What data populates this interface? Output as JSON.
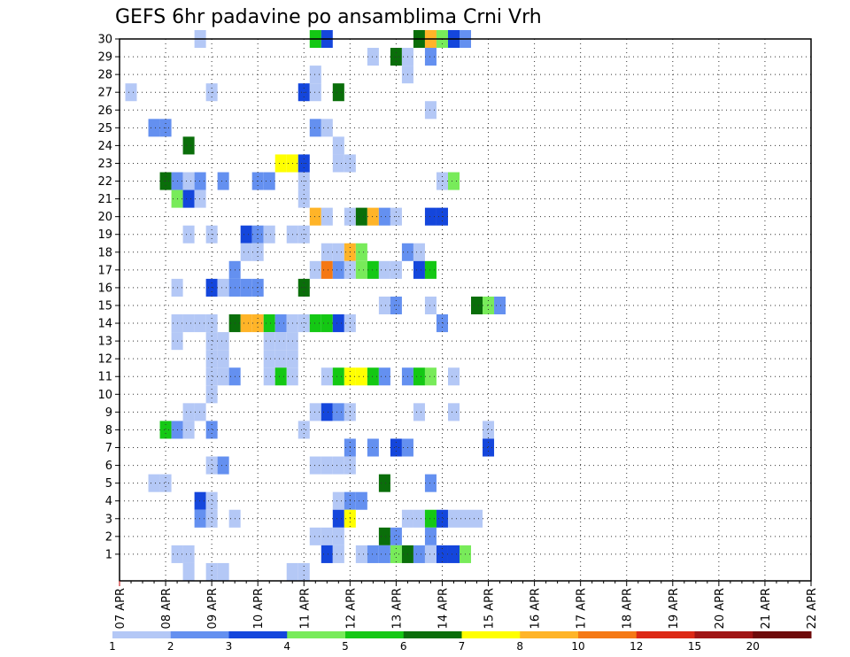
{
  "chart_data": {
    "type": "heatmap",
    "title": "GEFS 6hr padavine po ansamblima Crni Vrh",
    "xlabel": "",
    "ylabel": "",
    "grid": true,
    "x_range": [
      "07 APR 00Z",
      "22 APR 00Z"
    ],
    "x_step": "6 hours",
    "x_tick_labels": [
      "07 APR",
      "08 APR",
      "09 APR",
      "10 APR",
      "11 APR",
      "12 APR",
      "13 APR",
      "14 APR",
      "15 APR",
      "16 APR",
      "17 APR",
      "18 APR",
      "19 APR",
      "20 APR",
      "21 APR",
      "22 APR"
    ],
    "y_tick_labels": [
      "1",
      "2",
      "3",
      "4",
      "5",
      "6",
      "7",
      "8",
      "9",
      "10",
      "11",
      "12",
      "13",
      "14",
      "15",
      "16",
      "17",
      "18",
      "19",
      "20",
      "21",
      "22",
      "23",
      "24",
      "25",
      "26",
      "27",
      "28",
      "29",
      "30"
    ],
    "y_range": [
      1,
      30
    ],
    "colorbar": {
      "labels": [
        "1",
        "2",
        "3",
        "4",
        "5",
        "6",
        "7",
        "8",
        "10",
        "12",
        "15",
        "20"
      ],
      "colors": [
        "#b4c8f6",
        "#6490f0",
        "#1446dc",
        "#78eb5a",
        "#14c814",
        "#0a6e0a",
        "#ffff00",
        "#ffb428",
        "#f57814",
        "#dc2814",
        "#a01414",
        "#6e0a0a"
      ]
    },
    "cells_note": "[member, time step index from 07 APR 00Z in 6h steps, colour class index 0-11]",
    "cells": [
      [
        30,
        7,
        0
      ],
      [
        30,
        17,
        4
      ],
      [
        30,
        18,
        2
      ],
      [
        30,
        26,
        5
      ],
      [
        30,
        27,
        7
      ],
      [
        30,
        28,
        3
      ],
      [
        30,
        29,
        2
      ],
      [
        30,
        30,
        1
      ],
      [
        29,
        22,
        0
      ],
      [
        29,
        24,
        5
      ],
      [
        29,
        25,
        0
      ],
      [
        29,
        27,
        1
      ],
      [
        28,
        17,
        0
      ],
      [
        28,
        25,
        0
      ],
      [
        27,
        1,
        0
      ],
      [
        27,
        8,
        0
      ],
      [
        27,
        16,
        2
      ],
      [
        27,
        17,
        0
      ],
      [
        27,
        19,
        5
      ],
      [
        26,
        27,
        0
      ],
      [
        25,
        3,
        1
      ],
      [
        25,
        4,
        1
      ],
      [
        25,
        17,
        1
      ],
      [
        25,
        18,
        0
      ],
      [
        24,
        6,
        5
      ],
      [
        24,
        19,
        0
      ],
      [
        23,
        14,
        6
      ],
      [
        23,
        15,
        6
      ],
      [
        23,
        16,
        2
      ],
      [
        23,
        19,
        0
      ],
      [
        23,
        20,
        0
      ],
      [
        22,
        4,
        5
      ],
      [
        22,
        5,
        1
      ],
      [
        22,
        6,
        0
      ],
      [
        22,
        7,
        1
      ],
      [
        22,
        9,
        1
      ],
      [
        22,
        12,
        1
      ],
      [
        22,
        13,
        1
      ],
      [
        22,
        16,
        0
      ],
      [
        22,
        28,
        0
      ],
      [
        22,
        29,
        3
      ],
      [
        21,
        5,
        3
      ],
      [
        21,
        6,
        2
      ],
      [
        21,
        7,
        0
      ],
      [
        21,
        16,
        0
      ],
      [
        20,
        17,
        7
      ],
      [
        20,
        18,
        0
      ],
      [
        20,
        20,
        0
      ],
      [
        20,
        21,
        5
      ],
      [
        20,
        22,
        7
      ],
      [
        20,
        23,
        1
      ],
      [
        20,
        24,
        0
      ],
      [
        20,
        27,
        2
      ],
      [
        20,
        28,
        2
      ],
      [
        19,
        6,
        0
      ],
      [
        19,
        8,
        0
      ],
      [
        19,
        11,
        2
      ],
      [
        19,
        12,
        1
      ],
      [
        19,
        13,
        0
      ],
      [
        19,
        15,
        0
      ],
      [
        19,
        16,
        0
      ],
      [
        18,
        11,
        0
      ],
      [
        18,
        12,
        0
      ],
      [
        18,
        18,
        0
      ],
      [
        18,
        19,
        0
      ],
      [
        18,
        20,
        7
      ],
      [
        18,
        21,
        3
      ],
      [
        18,
        25,
        1
      ],
      [
        18,
        26,
        0
      ],
      [
        17,
        10,
        1
      ],
      [
        17,
        17,
        0
      ],
      [
        17,
        18,
        8
      ],
      [
        17,
        19,
        1
      ],
      [
        17,
        20,
        0
      ],
      [
        17,
        21,
        3
      ],
      [
        17,
        22,
        4
      ],
      [
        17,
        23,
        0
      ],
      [
        17,
        24,
        0
      ],
      [
        17,
        26,
        2
      ],
      [
        17,
        27,
        4
      ],
      [
        16,
        5,
        0
      ],
      [
        16,
        8,
        2
      ],
      [
        16,
        9,
        0
      ],
      [
        16,
        10,
        1
      ],
      [
        16,
        11,
        1
      ],
      [
        16,
        12,
        1
      ],
      [
        16,
        16,
        5
      ],
      [
        15,
        23,
        0
      ],
      [
        15,
        24,
        1
      ],
      [
        15,
        27,
        0
      ],
      [
        15,
        31,
        5
      ],
      [
        15,
        32,
        3
      ],
      [
        15,
        33,
        1
      ],
      [
        14,
        5,
        0
      ],
      [
        14,
        6,
        0
      ],
      [
        14,
        7,
        0
      ],
      [
        14,
        8,
        0
      ],
      [
        14,
        10,
        5
      ],
      [
        14,
        11,
        7
      ],
      [
        14,
        12,
        7
      ],
      [
        14,
        13,
        4
      ],
      [
        14,
        14,
        1
      ],
      [
        14,
        15,
        0
      ],
      [
        14,
        16,
        0
      ],
      [
        14,
        17,
        4
      ],
      [
        14,
        18,
        4
      ],
      [
        14,
        19,
        2
      ],
      [
        14,
        20,
        0
      ],
      [
        14,
        28,
        1
      ],
      [
        13,
        5,
        0
      ],
      [
        13,
        8,
        0
      ],
      [
        13,
        9,
        0
      ],
      [
        13,
        13,
        0
      ],
      [
        13,
        14,
        0
      ],
      [
        13,
        15,
        0
      ],
      [
        12,
        8,
        0
      ],
      [
        12,
        9,
        0
      ],
      [
        12,
        13,
        0
      ],
      [
        12,
        14,
        0
      ],
      [
        12,
        15,
        0
      ],
      [
        11,
        8,
        0
      ],
      [
        11,
        9,
        0
      ],
      [
        11,
        10,
        1
      ],
      [
        11,
        13,
        0
      ],
      [
        11,
        14,
        4
      ],
      [
        11,
        15,
        0
      ],
      [
        11,
        18,
        0
      ],
      [
        11,
        19,
        4
      ],
      [
        11,
        20,
        6
      ],
      [
        11,
        21,
        6
      ],
      [
        11,
        22,
        4
      ],
      [
        11,
        23,
        1
      ],
      [
        11,
        25,
        1
      ],
      [
        11,
        26,
        4
      ],
      [
        11,
        27,
        3
      ],
      [
        11,
        29,
        0
      ],
      [
        10,
        8,
        0
      ],
      [
        9,
        6,
        0
      ],
      [
        9,
        7,
        0
      ],
      [
        9,
        17,
        0
      ],
      [
        9,
        18,
        2
      ],
      [
        9,
        19,
        1
      ],
      [
        9,
        20,
        0
      ],
      [
        9,
        26,
        0
      ],
      [
        9,
        29,
        0
      ],
      [
        8,
        4,
        4
      ],
      [
        8,
        5,
        1
      ],
      [
        8,
        6,
        0
      ],
      [
        8,
        8,
        1
      ],
      [
        8,
        16,
        0
      ],
      [
        8,
        32,
        0
      ],
      [
        7,
        20,
        1
      ],
      [
        7,
        22,
        1
      ],
      [
        7,
        24,
        2
      ],
      [
        7,
        25,
        1
      ],
      [
        7,
        32,
        2
      ],
      [
        6,
        8,
        0
      ],
      [
        6,
        9,
        1
      ],
      [
        6,
        17,
        0
      ],
      [
        6,
        18,
        0
      ],
      [
        6,
        19,
        0
      ],
      [
        6,
        20,
        0
      ],
      [
        5,
        3,
        0
      ],
      [
        5,
        4,
        0
      ],
      [
        5,
        23,
        5
      ],
      [
        5,
        27,
        1
      ],
      [
        4,
        7,
        2
      ],
      [
        4,
        8,
        0
      ],
      [
        4,
        19,
        0
      ],
      [
        4,
        20,
        1
      ],
      [
        4,
        21,
        1
      ],
      [
        3,
        7,
        1
      ],
      [
        3,
        8,
        0
      ],
      [
        3,
        10,
        0
      ],
      [
        3,
        19,
        2
      ],
      [
        3,
        20,
        6
      ],
      [
        3,
        25,
        0
      ],
      [
        3,
        26,
        0
      ],
      [
        3,
        27,
        4
      ],
      [
        3,
        28,
        2
      ],
      [
        3,
        29,
        0
      ],
      [
        3,
        30,
        0
      ],
      [
        3,
        31,
        0
      ],
      [
        2,
        17,
        0
      ],
      [
        2,
        18,
        0
      ],
      [
        2,
        19,
        0
      ],
      [
        2,
        23,
        5
      ],
      [
        2,
        24,
        1
      ],
      [
        2,
        27,
        1
      ],
      [
        1,
        5,
        0
      ],
      [
        1,
        6,
        0
      ],
      [
        1,
        18,
        2
      ],
      [
        1,
        19,
        0
      ],
      [
        1,
        21,
        0
      ],
      [
        1,
        22,
        1
      ],
      [
        1,
        23,
        1
      ],
      [
        1,
        24,
        3
      ],
      [
        1,
        25,
        5
      ],
      [
        1,
        26,
        1
      ],
      [
        1,
        27,
        0
      ],
      [
        1,
        28,
        2
      ],
      [
        1,
        29,
        2
      ],
      [
        1,
        30,
        3
      ],
      [
        0,
        6,
        0
      ],
      [
        0,
        8,
        0
      ],
      [
        0,
        9,
        0
      ],
      [
        0,
        15,
        0
      ],
      [
        0,
        16,
        0
      ]
    ]
  }
}
